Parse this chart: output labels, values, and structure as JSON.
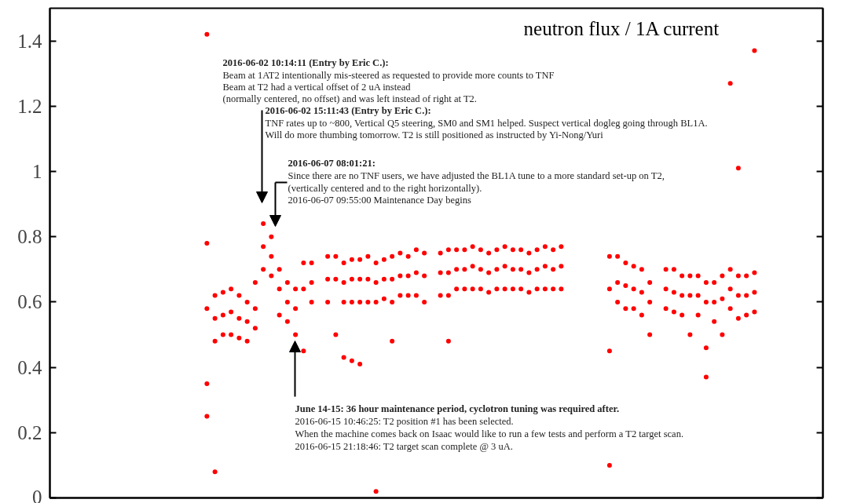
{
  "chart_data": {
    "type": "scatter",
    "title": "neutron flux / 1A current",
    "categories": [
      null,
      null,
      null,
      null,
      null,
      null,
      null,
      null,
      null,
      null,
      null,
      null,
      null,
      null,
      null,
      null,
      null,
      null,
      null,
      null,
      null,
      null,
      null,
      null,
      null,
      null,
      null,
      null,
      null,
      null,
      null,
      null,
      null,
      null,
      null,
      null,
      null,
      null,
      null,
      null,
      null,
      null,
      null,
      null,
      null,
      null,
      null,
      null,
      null,
      null,
      null,
      null,
      null,
      null,
      null,
      null,
      null,
      null,
      null,
      null,
      null,
      null,
      null,
      null,
      null,
      null,
      null,
      null,
      null,
      null,
      null,
      null,
      null,
      null,
      null,
      null,
      null,
      null,
      null,
      null,
      null,
      null,
      null,
      null,
      null,
      null,
      null,
      null,
      null,
      null,
      null,
      null,
      null,
      null,
      null,
      null
    ],
    "series": [
      {
        "color": "#ff0000",
        "values": [
          null,
          null,
          null,
          null,
          null,
          null,
          null,
          null,
          null,
          null,
          null,
          null,
          null,
          null,
          null,
          null,
          null,
          null,
          null,
          0.58,
          0.55,
          0.56,
          0.57,
          0.55,
          0.54,
          0.58,
          0.77,
          0.74,
          0.64,
          0.6,
          0.58,
          0.64,
          0.66,
          null,
          0.67,
          0.67,
          0.66,
          0.67,
          0.67,
          0.67,
          0.66,
          0.67,
          0.67,
          0.68,
          0.68,
          0.69,
          0.68,
          null,
          0.69,
          0.69,
          0.7,
          0.7,
          0.71,
          0.7,
          0.69,
          0.7,
          0.71,
          0.7,
          0.7,
          0.69,
          0.7,
          0.71,
          0.7,
          0.71,
          null,
          null,
          null,
          null,
          null,
          0.64,
          0.66,
          0.65,
          0.64,
          0.63,
          0.6,
          null,
          0.64,
          0.63,
          0.62,
          0.62,
          0.62,
          0.6,
          0.6,
          0.61,
          0.64,
          0.62,
          0.62,
          0.63,
          null,
          null,
          null,
          null,
          null,
          null,
          null,
          null
        ]
      },
      {
        "color": "#ff0000",
        "values": [
          null,
          null,
          null,
          null,
          null,
          null,
          null,
          null,
          null,
          null,
          null,
          null,
          null,
          null,
          null,
          null,
          null,
          null,
          null,
          0.78,
          0.62,
          0.63,
          0.64,
          0.62,
          0.6,
          0.66,
          0.84,
          0.8,
          0.7,
          0.66,
          0.64,
          0.72,
          0.72,
          null,
          0.74,
          0.74,
          0.72,
          0.73,
          0.73,
          0.74,
          0.72,
          0.73,
          0.74,
          0.75,
          0.74,
          0.76,
          0.75,
          null,
          0.75,
          0.76,
          0.76,
          0.76,
          0.77,
          0.76,
          0.75,
          0.76,
          0.77,
          0.76,
          0.76,
          0.75,
          0.76,
          0.77,
          0.76,
          0.77,
          null,
          null,
          null,
          null,
          null,
          0.74,
          0.74,
          0.72,
          0.71,
          0.7,
          0.66,
          null,
          0.7,
          0.7,
          0.68,
          0.68,
          0.68,
          0.66,
          0.66,
          0.68,
          0.7,
          0.68,
          0.68,
          0.69,
          null,
          null,
          null,
          null,
          null,
          null,
          null,
          null
        ]
      },
      {
        "color": "#ff0000",
        "values": [
          null,
          null,
          null,
          null,
          null,
          null,
          null,
          null,
          null,
          null,
          null,
          null,
          null,
          null,
          null,
          null,
          null,
          null,
          null,
          0.35,
          0.48,
          0.5,
          0.5,
          0.49,
          0.48,
          0.52,
          0.7,
          0.68,
          0.56,
          0.54,
          0.5,
          0.45,
          0.6,
          null,
          0.6,
          0.5,
          0.6,
          0.6,
          0.6,
          0.6,
          0.6,
          0.61,
          0.6,
          0.62,
          0.62,
          0.62,
          0.6,
          null,
          0.62,
          0.62,
          0.64,
          0.64,
          0.64,
          0.64,
          0.63,
          0.64,
          0.64,
          0.64,
          0.64,
          0.63,
          0.64,
          0.64,
          0.64,
          0.64,
          null,
          null,
          null,
          null,
          null,
          0.45,
          0.6,
          0.58,
          0.58,
          0.56,
          0.5,
          null,
          0.58,
          0.57,
          0.56,
          0.5,
          0.56,
          0.46,
          0.54,
          0.5,
          0.58,
          0.55,
          0.56,
          0.57,
          null,
          null,
          null,
          null,
          null,
          null,
          null,
          null
        ]
      },
      {
        "color": "#ff0000",
        "values": [
          null,
          null,
          null,
          null,
          null,
          null,
          null,
          null,
          null,
          null,
          null,
          null,
          null,
          null,
          null,
          null,
          null,
          null,
          null,
          1.42,
          null,
          null,
          null,
          null,
          null,
          null,
          null,
          null,
          null,
          null,
          null,
          null,
          null,
          null,
          null,
          null,
          null,
          null,
          null,
          null,
          null,
          null,
          null,
          null,
          null,
          null,
          null,
          null,
          null,
          null,
          null,
          null,
          null,
          null,
          null,
          null,
          null,
          null,
          null,
          null,
          null,
          null,
          null,
          null,
          null,
          null,
          null,
          null,
          null,
          null,
          null,
          null,
          null,
          null,
          null,
          null,
          null,
          null,
          null,
          null,
          null,
          null,
          null,
          null,
          1.27,
          1.01,
          null,
          1.37,
          null,
          null,
          null,
          null,
          null,
          null,
          null,
          null
        ]
      },
      {
        "color": "#ff0000",
        "values": [
          null,
          null,
          null,
          null,
          null,
          null,
          null,
          null,
          null,
          null,
          null,
          null,
          null,
          null,
          null,
          null,
          null,
          null,
          null,
          0.25,
          0.08,
          null,
          null,
          null,
          null,
          null,
          null,
          null,
          null,
          null,
          null,
          null,
          null,
          null,
          null,
          null,
          0.43,
          0.42,
          0.41,
          null,
          0.02,
          null,
          0.48,
          null,
          null,
          null,
          null,
          null,
          null,
          0.48,
          null,
          null,
          null,
          null,
          null,
          null,
          null,
          null,
          null,
          null,
          null,
          null,
          null,
          null,
          null,
          null,
          null,
          null,
          null,
          0.1,
          null,
          null,
          null,
          null,
          null,
          null,
          null,
          null,
          null,
          null,
          null,
          0.37,
          null,
          null,
          null,
          null,
          null,
          null,
          null,
          null,
          null,
          null,
          null,
          null,
          null,
          null
        ]
      }
    ],
    "ylim": [
      0,
      1.5
    ],
    "yticks": [
      0,
      0.2,
      0.4,
      0.6,
      0.8,
      1,
      1.2,
      1.4
    ],
    "marker": "circle",
    "tick_labels": "y",
    "annotations": [
      "2016-06-02 10:14:11 (Entry by Eric C.):",
      "Beam at 1AT2 intentionally mis-steered as requested to provide more counts to TNF",
      "Beam at T2 had a vertical offset of 2 uA instead",
      "(normally centered, no offset) and was left instead of right at T2.",
      "2016-06-02 15:11:43 (Entry by Eric C.):",
      "TNF rates up to ~800, Vertical Q5 steering, SM0 and SM1 helped. Suspect vertical dogleg going through BL1A.",
      "Will do more thumbing tomorrow. T2 is still positioned as instructed by Yi-Nong/Yuri",
      "2016-06-07 08:01:21:",
      "Since there are no TNF users, we have adjusted the BL1A tune to a more standard set-up on T2,",
      "(vertically centered and to the right horizontally).",
      "2016-06-07 09:55:00 Maintenance Day begins",
      "June 14-15: 36 hour maintenance period, cyclotron tuning was required after.",
      "2016-06-15 10:46:25: T2 position #1 has been selected.",
      "When the machine comes back on Isaac would like to run a few tests and perform a T2 target scan.",
      "2016-06-15 21:18:46: T2 target scan complete @ 3 uA."
    ]
  }
}
